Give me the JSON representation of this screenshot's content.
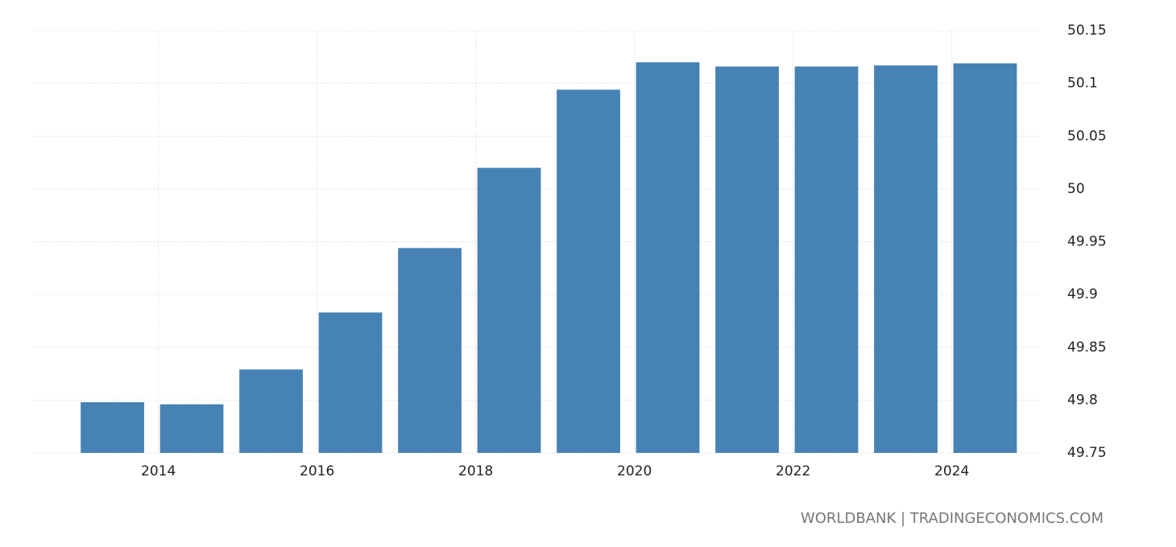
{
  "chart_data": {
    "type": "bar",
    "x": [
      2013,
      2014,
      2015,
      2016,
      2017,
      2018,
      2019,
      2020,
      2021,
      2022,
      2023,
      2024
    ],
    "values": [
      49.798,
      49.796,
      49.829,
      49.883,
      49.944,
      50.02,
      50.094,
      50.12,
      50.116,
      50.116,
      50.117,
      50.119
    ],
    "color": "#4682b4",
    "xlim": [
      2012.44,
      2025.1
    ],
    "xticks": [
      2014,
      2016,
      2018,
      2020,
      2022,
      2024
    ],
    "ylim": [
      49.75,
      50.15
    ],
    "yticks": [
      49.75,
      49.8,
      49.85,
      49.9,
      49.95,
      50,
      50.05,
      50.1,
      50.15
    ],
    "grid": true,
    "source": "WORLDBANK | TRADINGECONOMICS.COM"
  }
}
